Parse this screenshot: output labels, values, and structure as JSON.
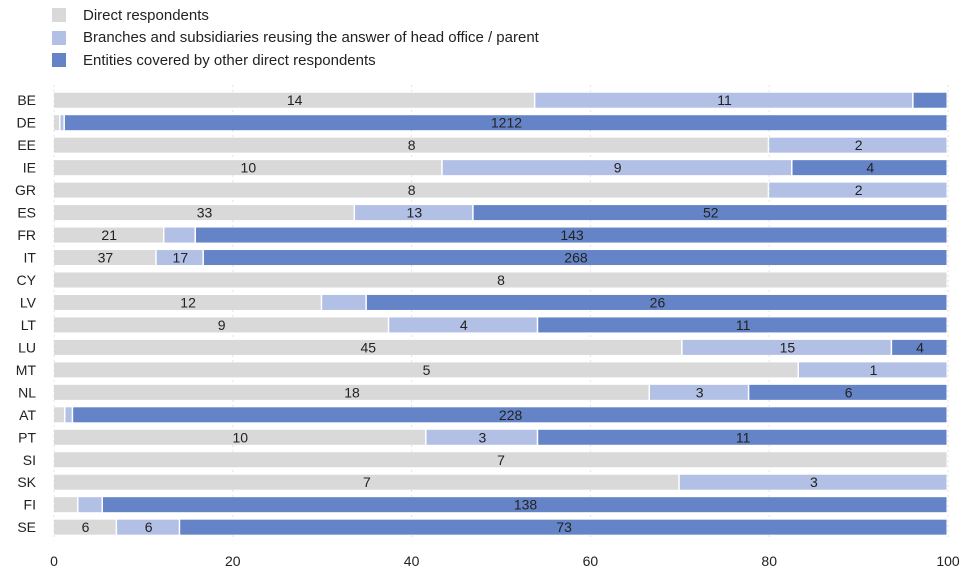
{
  "colors": {
    "direct": "#d9d9d9",
    "branches": "#b3c0e6",
    "covered": "#6584c8",
    "grid": "#e3e3e3",
    "text": "#222222"
  },
  "legend": [
    {
      "key": "direct",
      "label": "Direct respondents"
    },
    {
      "key": "branches",
      "label": "Branches and subsidiaries reusing the answer of head office / parent"
    },
    {
      "key": "covered",
      "label": "Entities covered by other direct respondents"
    }
  ],
  "chart_data": {
    "type": "bar",
    "orientation": "horizontal",
    "stacked": "percent",
    "xlim": [
      0,
      100
    ],
    "xticks": [
      0,
      20,
      40,
      60,
      80,
      100
    ],
    "grid": "vertical dotted",
    "legend_position": "top-left",
    "categories": [
      "BE",
      "DE",
      "EE",
      "IE",
      "GR",
      "ES",
      "FR",
      "IT",
      "CY",
      "LV",
      "LT",
      "LU",
      "MT",
      "NL",
      "AT",
      "PT",
      "SI",
      "SK",
      "FI",
      "SE"
    ],
    "series": [
      {
        "name": "Direct respondents",
        "color_key": "direct",
        "values": [
          14,
          9,
          8,
          10,
          8,
          33,
          21,
          37,
          8,
          12,
          9,
          45,
          5,
          18,
          3,
          10,
          7,
          7,
          4,
          6
        ],
        "labels": [
          "14",
          "",
          "8",
          "10",
          "8",
          "33",
          "21",
          "37",
          "8",
          "12",
          "9",
          "45",
          "5",
          "18",
          "",
          "10",
          "7",
          "7",
          "",
          "6"
        ]
      },
      {
        "name": "Branches and subsidiaries reusing the answer of head office / parent",
        "color_key": "branches",
        "values": [
          11,
          6,
          2,
          9,
          2,
          13,
          6,
          17,
          0,
          2,
          4,
          15,
          1,
          3,
          2,
          3,
          0,
          3,
          4,
          6
        ],
        "labels": [
          "11",
          "",
          "2",
          "9",
          "2",
          "13",
          "",
          "17",
          "",
          "",
          "4",
          "15",
          "1",
          "3",
          "",
          "3",
          "",
          "3",
          "",
          "6"
        ]
      },
      {
        "name": "Entities covered by other direct respondents",
        "color_key": "covered",
        "values": [
          1,
          1212,
          0,
          4,
          0,
          52,
          143,
          268,
          0,
          26,
          11,
          4,
          0,
          6,
          228,
          11,
          0,
          0,
          138,
          73
        ],
        "labels": [
          "",
          "1212",
          "",
          "4",
          "",
          "52",
          "143",
          "268",
          "",
          "26",
          "11",
          "4",
          "",
          "6",
          "228",
          "11",
          "",
          "",
          "138",
          "73"
        ]
      }
    ]
  }
}
